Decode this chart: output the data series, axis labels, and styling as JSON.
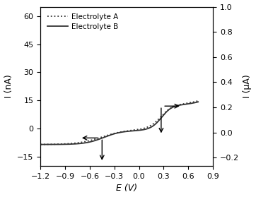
{
  "title": "",
  "xlabel": "E (V)",
  "ylabel_left": "I (nA)",
  "ylabel_right": "I (μA)",
  "xlim": [
    -1.2,
    0.9
  ],
  "ylim_left": [
    -20,
    65
  ],
  "xticks": [
    -1.2,
    -0.9,
    -0.6,
    -0.3,
    0.0,
    0.3,
    0.6,
    0.9
  ],
  "yticks_left": [
    -15,
    0,
    15,
    30,
    45,
    60
  ],
  "yticks_right": [
    -0.2,
    0.0,
    0.2,
    0.4,
    0.6,
    0.8,
    1.0
  ],
  "legend_entries": [
    "Electrolyte A",
    "Electrolyte B"
  ],
  "background": "#ffffff",
  "line_color": "#333333",
  "scale_nA_per_uA": 75.0
}
